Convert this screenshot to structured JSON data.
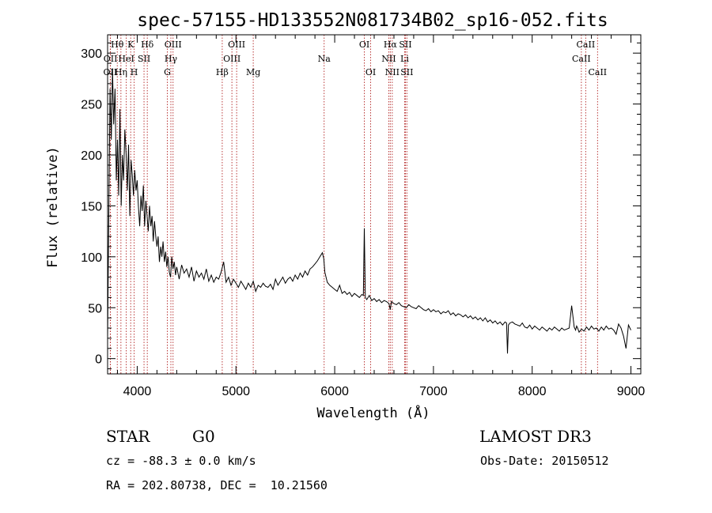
{
  "chart_data": {
    "type": "line",
    "title": "spec-57155-HD133552N081734B02_sp16-052.fits",
    "xlabel": "Wavelength (Å)",
    "ylabel": "Flux (relative)",
    "xlim": [
      3700,
      9100
    ],
    "ylim": [
      -15,
      318
    ],
    "x_ticks": [
      4000,
      5000,
      6000,
      7000,
      8000,
      9000
    ],
    "y_ticks": [
      0,
      50,
      100,
      150,
      200,
      250,
      300
    ],
    "grid": false,
    "line_color": "#000000",
    "marker_color": "#b22222",
    "spectral_lines": [
      {
        "label": "OII",
        "wavelength": 3727,
        "row": 3
      },
      {
        "label": "OII",
        "wavelength": 3729,
        "row": 2
      },
      {
        "label": "Hθ",
        "wavelength": 3798,
        "row": 1
      },
      {
        "label": "Hη",
        "wavelength": 3835,
        "row": 3
      },
      {
        "label": "HeI",
        "wavelength": 3889,
        "row": 2
      },
      {
        "label": "K",
        "wavelength": 3934,
        "row": 1
      },
      {
        "label": "H",
        "wavelength": 3969,
        "row": 3
      },
      {
        "label": "SII",
        "wavelength": 4069,
        "row": 2
      },
      {
        "label": "Hδ",
        "wavelength": 4102,
        "row": 1
      },
      {
        "label": "G",
        "wavelength": 4305,
        "row": 3
      },
      {
        "label": "Hγ",
        "wavelength": 4341,
        "row": 2
      },
      {
        "label": "OIII",
        "wavelength": 4363,
        "row": 1
      },
      {
        "label": "Hβ",
        "wavelength": 4861,
        "row": 3
      },
      {
        "label": "OIII",
        "wavelength": 4959,
        "row": 2
      },
      {
        "label": "OIII",
        "wavelength": 5007,
        "row": 1
      },
      {
        "label": "Mg",
        "wavelength": 5175,
        "row": 3
      },
      {
        "label": "Na",
        "wavelength": 5893,
        "row": 2
      },
      {
        "label": "OI",
        "wavelength": 6300,
        "row": 1
      },
      {
        "label": "OI",
        "wavelength": 6364,
        "row": 3
      },
      {
        "label": "NII",
        "wavelength": 6548,
        "row": 2
      },
      {
        "label": "Hα",
        "wavelength": 6563,
        "row": 1
      },
      {
        "label": "NII",
        "wavelength": 6583,
        "row": 3
      },
      {
        "label": "Li",
        "wavelength": 6708,
        "row": 2
      },
      {
        "label": "SII",
        "wavelength": 6716,
        "row": 1
      },
      {
        "label": "SII",
        "wavelength": 6731,
        "row": 3
      },
      {
        "label": "CaII",
        "wavelength": 8498,
        "row": 2
      },
      {
        "label": "CaII",
        "wavelength": 8542,
        "row": 1
      },
      {
        "label": "CaII",
        "wavelength": 8662,
        "row": 3
      }
    ],
    "series": [
      {
        "x": [
          3700,
          3712,
          3725,
          3738,
          3750,
          3762,
          3775,
          3788,
          3800,
          3812,
          3825,
          3838,
          3850,
          3862,
          3875,
          3888,
          3900,
          3912,
          3925,
          3938,
          3950,
          3962,
          3975,
          3988,
          4000,
          4012,
          4025,
          4038,
          4050,
          4062,
          4075,
          4088,
          4100,
          4112,
          4125,
          4138,
          4150,
          4162,
          4175,
          4188,
          4200,
          4212,
          4225,
          4238,
          4250,
          4262,
          4275,
          4288,
          4300,
          4312,
          4325,
          4338,
          4350,
          4362,
          4375,
          4388,
          4400,
          4425,
          4450,
          4475,
          4500,
          4525,
          4550,
          4575,
          4600,
          4625,
          4650,
          4675,
          4700,
          4725,
          4750,
          4775,
          4800,
          4825,
          4850,
          4875,
          4900,
          4925,
          4950,
          4975,
          5000,
          5025,
          5050,
          5075,
          5100,
          5125,
          5150,
          5175,
          5200,
          5225,
          5250,
          5275,
          5300,
          5325,
          5350,
          5375,
          5400,
          5425,
          5450,
          5475,
          5500,
          5525,
          5550,
          5575,
          5600,
          5625,
          5650,
          5675,
          5700,
          5725,
          5750,
          5775,
          5800,
          5825,
          5850,
          5875,
          5890,
          5900,
          5925,
          5950,
          5975,
          6000,
          6025,
          6050,
          6075,
          6100,
          6125,
          6150,
          6175,
          6200,
          6225,
          6250,
          6275,
          6290,
          6300,
          6310,
          6325,
          6350,
          6375,
          6400,
          6425,
          6450,
          6475,
          6500,
          6525,
          6550,
          6563,
          6575,
          6600,
          6625,
          6650,
          6675,
          6700,
          6725,
          6750,
          6775,
          6800,
          6825,
          6850,
          6875,
          6900,
          6925,
          6950,
          6975,
          7000,
          7025,
          7050,
          7075,
          7100,
          7125,
          7150,
          7175,
          7200,
          7225,
          7250,
          7275,
          7300,
          7325,
          7350,
          7375,
          7400,
          7425,
          7450,
          7475,
          7500,
          7525,
          7550,
          7575,
          7600,
          7625,
          7650,
          7675,
          7700,
          7725,
          7740,
          7750,
          7760,
          7775,
          7800,
          7825,
          7850,
          7875,
          7900,
          7925,
          7950,
          7975,
          8000,
          8025,
          8050,
          8075,
          8100,
          8125,
          8150,
          8175,
          8200,
          8225,
          8250,
          8275,
          8300,
          8325,
          8350,
          8375,
          8400,
          8425,
          8440,
          8450,
          8460,
          8475,
          8500,
          8525,
          8550,
          8575,
          8600,
          8625,
          8650,
          8675,
          8700,
          8725,
          8750,
          8775,
          8800,
          8825,
          8850,
          8875,
          8900,
          8925,
          8950,
          8975,
          9000
        ],
        "y": [
          20,
          140,
          265,
          215,
          285,
          230,
          265,
          175,
          215,
          160,
          245,
          150,
          200,
          175,
          225,
          200,
          165,
          210,
          140,
          195,
          180,
          160,
          185,
          165,
          175,
          150,
          130,
          160,
          145,
          170,
          130,
          155,
          140,
          125,
          150,
          130,
          140,
          115,
          135,
          120,
          110,
          120,
          95,
          110,
          100,
          115,
          95,
          105,
          90,
          100,
          85,
          80,
          100,
          88,
          95,
          82,
          90,
          78,
          92,
          84,
          88,
          80,
          90,
          76,
          86,
          80,
          84,
          78,
          88,
          76,
          82,
          75,
          80,
          78,
          85,
          95,
          75,
          80,
          72,
          78,
          74,
          70,
          76,
          72,
          68,
          74,
          70,
          76,
          66,
          72,
          70,
          74,
          71,
          70,
          73,
          68,
          78,
          72,
          76,
          80,
          74,
          78,
          80,
          76,
          82,
          78,
          84,
          80,
          86,
          82,
          88,
          90,
          93,
          96,
          100,
          104,
          98,
          85,
          75,
          72,
          70,
          68,
          66,
          72,
          64,
          66,
          63,
          65,
          61,
          64,
          62,
          60,
          63,
          62,
          128,
          60,
          58,
          62,
          57,
          59,
          56,
          58,
          55,
          57,
          56,
          54,
          48,
          56,
          54,
          53,
          55,
          52,
          51,
          50,
          53,
          51,
          50,
          49,
          52,
          50,
          48,
          47,
          49,
          46,
          48,
          46,
          47,
          44,
          46,
          45,
          47,
          43,
          45,
          42,
          44,
          43,
          41,
          43,
          40,
          42,
          39,
          41,
          38,
          40,
          37,
          40,
          36,
          38,
          35,
          37,
          34,
          36,
          33,
          36,
          35,
          5,
          33,
          35,
          36,
          34,
          33,
          32,
          35,
          31,
          30,
          33,
          29,
          32,
          30,
          28,
          31,
          29,
          27,
          30,
          28,
          31,
          29,
          27,
          30,
          28,
          29,
          30,
          52,
          31,
          28,
          32,
          30,
          26,
          29,
          27,
          31,
          28,
          32,
          29,
          30,
          27,
          31,
          28,
          32,
          29,
          30,
          28,
          24,
          34,
          30,
          22,
          10,
          33,
          28
        ]
      }
    ]
  },
  "info": {
    "object_class": "STAR",
    "subclass": "G0",
    "survey": "LAMOST DR3",
    "redshift": "cz = -88.3 ± 0.0 km/s",
    "obs_date": "Obs-Date: 20150512",
    "coords": "RA = 202.80738, DEC =  10.21560"
  }
}
